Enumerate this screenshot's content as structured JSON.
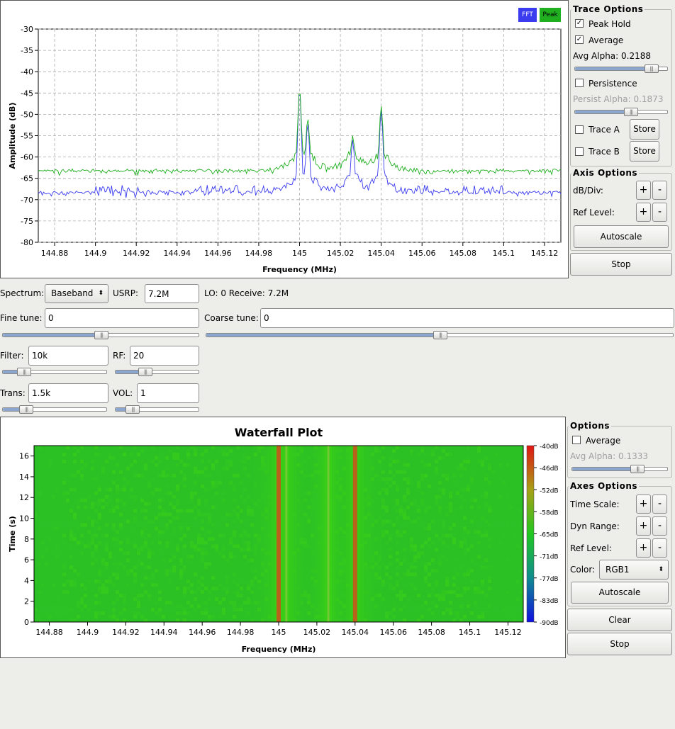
{
  "spectrum": {
    "legend": {
      "fft": "FFT",
      "peak": "Peak",
      "fft_color": "#3b3bf0",
      "peak_color": "#1faf1f"
    },
    "chart_data": {
      "type": "line",
      "xlabel": "Frequency (MHz)",
      "ylabel": "Amplitude (dB)",
      "xlim": [
        144.872,
        145.128
      ],
      "ylim": [
        -80,
        -30
      ],
      "x_ticks": [
        "144.88",
        "144.9",
        "144.92",
        "144.94",
        "144.96",
        "144.98",
        "145",
        "145.02",
        "145.04",
        "145.06",
        "145.08",
        "145.1",
        "145.12"
      ],
      "y_ticks": [
        "-30",
        "-35",
        "-40",
        "-45",
        "-50",
        "-55",
        "-60",
        "-65",
        "-70",
        "-75",
        "-80"
      ],
      "grid": true,
      "series": [
        {
          "name": "FFT",
          "color": "#3b3bf0",
          "baseline": -69,
          "noise": 2.5,
          "peaks": [
            {
              "x": 145.0,
              "y": -44
            },
            {
              "x": 145.004,
              "y": -52
            },
            {
              "x": 145.026,
              "y": -56
            },
            {
              "x": 145.04,
              "y": -49
            }
          ]
        },
        {
          "name": "Peak",
          "color": "#1faf1f",
          "baseline": -64,
          "noise": 1.2,
          "peaks": [
            {
              "x": 145.0,
              "y": -44
            },
            {
              "x": 145.004,
              "y": -51
            },
            {
              "x": 145.026,
              "y": -55
            },
            {
              "x": 145.04,
              "y": -48
            }
          ]
        }
      ]
    }
  },
  "trace_options": {
    "title": "Trace Options",
    "peak_hold": "Peak Hold",
    "average": "Average",
    "avg_alpha": "Avg Alpha: 0.2188",
    "persistence": "Persistence",
    "persist_alpha": "Persist Alpha: 0.1873",
    "trace_a": "Trace A",
    "trace_b": "Trace B",
    "store": "Store",
    "avg_alpha_level": 0.82,
    "persist_alpha_level": 0.6
  },
  "axis_options": {
    "title": "Axis Options",
    "db_div": "dB/Div:",
    "ref_level": "Ref Level:",
    "plus": "+",
    "minus": "-",
    "autoscale": "Autoscale",
    "stop": "Stop"
  },
  "controls": {
    "spectrum_label": "Spectrum:",
    "spectrum_value": "Baseband",
    "usrp_label": "USRP:",
    "usrp_value": "7.2M",
    "lo_receive": "LO: 0  Receive: 7.2M",
    "fine_tune_label": "Fine tune:",
    "fine_tune_value": "0",
    "coarse_tune_label": "Coarse tune:",
    "coarse_tune_value": "0",
    "filter_label": "Filter:",
    "filter_value": "10k",
    "rf_label": "RF:",
    "rf_value": "20",
    "trans_label": "Trans:",
    "trans_value": "1.5k",
    "vol_label": "VOL:",
    "vol_value": "1",
    "fine_level": 0.5,
    "coarse_level": 0.5,
    "filter_level": 0.2,
    "rf_level": 0.35,
    "trans_level": 0.22,
    "vol_level": 0.2
  },
  "waterfall": {
    "title": "Waterfall Plot",
    "chart_data": {
      "type": "heatmap",
      "title": "Waterfall Plot",
      "xlabel": "Frequency (MHz)",
      "ylabel": "Time (s)",
      "xlim": [
        144.872,
        145.128
      ],
      "ylim": [
        0,
        17
      ],
      "x_ticks": [
        "144.88",
        "144.9",
        "144.92",
        "144.94",
        "144.96",
        "144.98",
        "145",
        "145.02",
        "145.04",
        "145.06",
        "145.08",
        "145.1",
        "145.12"
      ],
      "y_ticks": [
        "16",
        "14",
        "12",
        "10",
        "8",
        "6",
        "4",
        "2",
        "0"
      ],
      "colorbar_ticks": [
        "-40dB",
        "-46dB",
        "-52dB",
        "-58dB",
        "-65dB",
        "-71dB",
        "-77dB",
        "-83dB",
        "-90dB"
      ],
      "signal_lines_mhz": [
        145.0,
        145.004,
        145.026,
        145.04
      ]
    }
  },
  "wf_options": {
    "title": "Options",
    "average": "Average",
    "avg_alpha": "Avg Alpha: 0.1333",
    "avg_alpha_level": 0.68
  },
  "axes_options": {
    "title": "Axes Options",
    "time_scale": "Time Scale:",
    "dyn_range": "Dyn Range:",
    "ref_level": "Ref Level:",
    "color_label": "Color:",
    "color_value": "RGB1",
    "plus": "+",
    "minus": "-",
    "autoscale": "Autoscale",
    "clear": "Clear",
    "stop": "Stop"
  }
}
